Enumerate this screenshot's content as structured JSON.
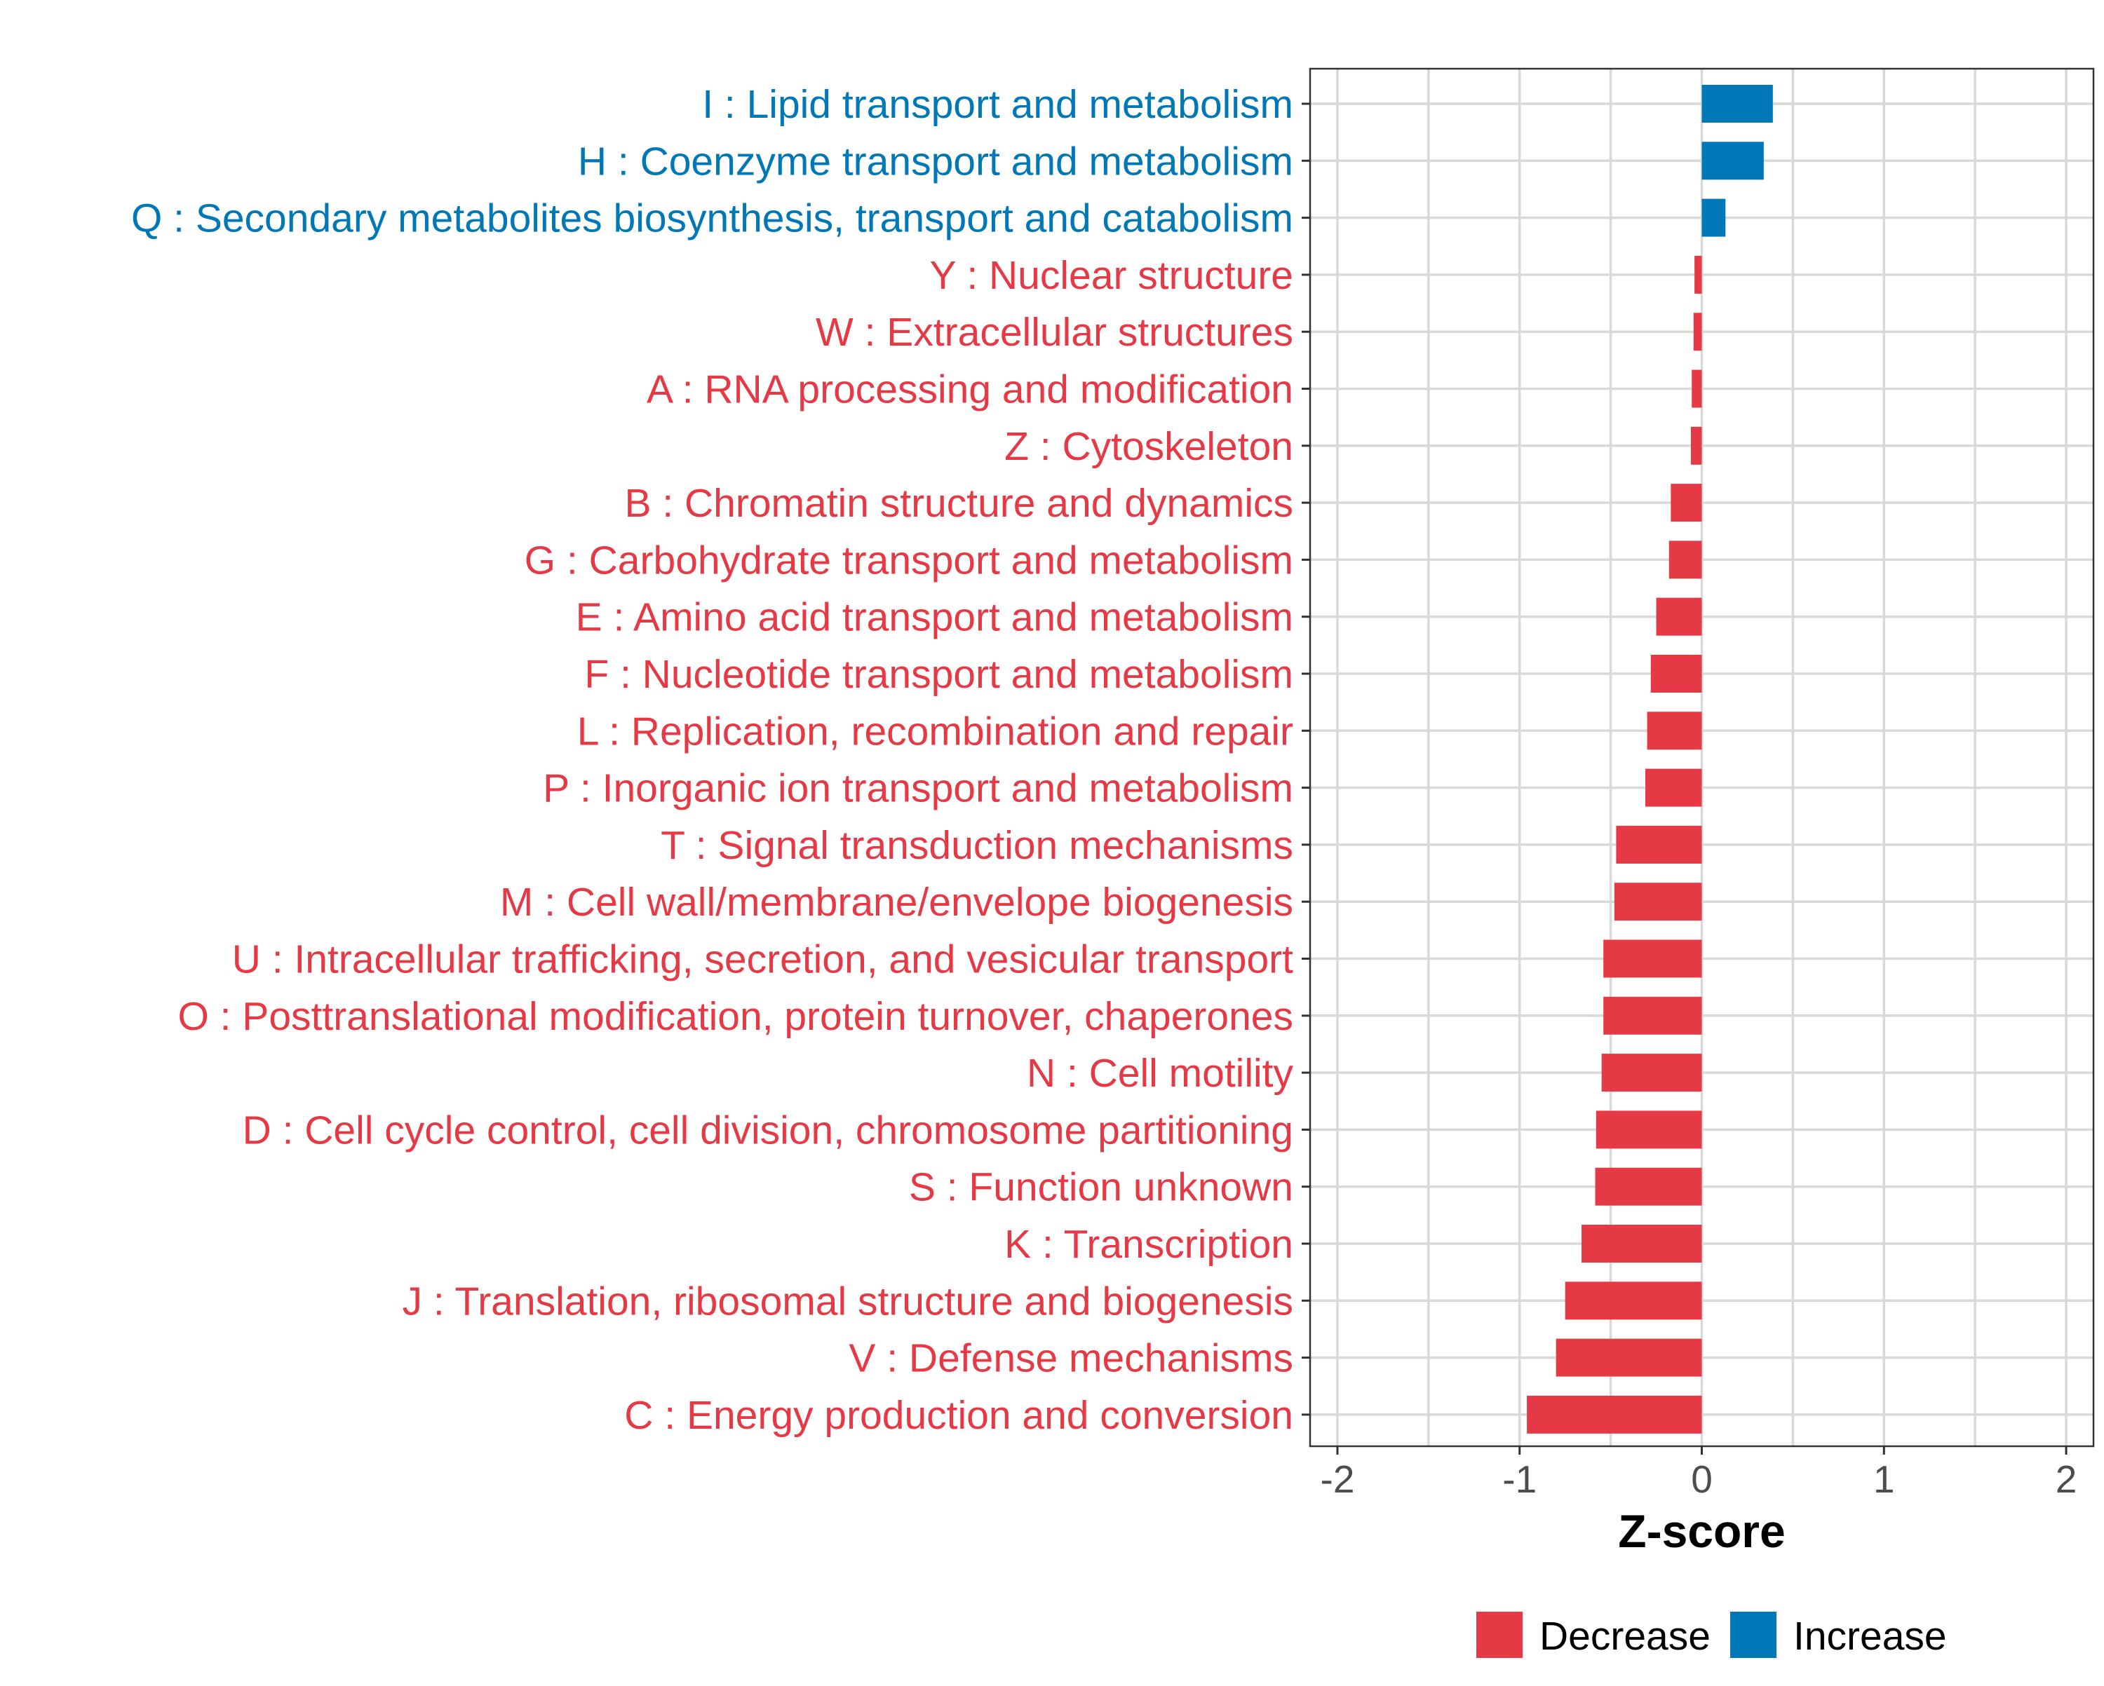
{
  "chart_data": {
    "type": "bar",
    "orientation": "horizontal",
    "title": "",
    "xlabel": "Z-score",
    "ylabel": "",
    "xlim": [
      -2.15,
      2.15
    ],
    "xticks": [
      -2,
      -1,
      0,
      1,
      2
    ],
    "xtick_labels": [
      "-2",
      "-1",
      "0",
      "1",
      "2"
    ],
    "grid": true,
    "legend_position": "bottom",
    "colors": {
      "Decrease": "#E63946",
      "Increase": "#0077B6"
    },
    "legend": [
      {
        "label": "Decrease",
        "group": "Decrease"
      },
      {
        "label": "Increase",
        "group": "Increase"
      }
    ],
    "categories": [
      "I : Lipid transport and metabolism",
      "H : Coenzyme transport and metabolism",
      "Q : Secondary metabolites biosynthesis, transport and catabolism",
      "Y : Nuclear structure",
      "W : Extracellular structures",
      "A : RNA processing and modification",
      "Z : Cytoskeleton",
      "B : Chromatin structure and dynamics",
      "G : Carbohydrate transport and metabolism",
      "E : Amino acid transport and metabolism",
      "F : Nucleotide transport and metabolism",
      "L : Replication, recombination and repair",
      "P : Inorganic ion transport and metabolism",
      "T : Signal transduction mechanisms",
      "M : Cell wall/membrane/envelope biogenesis",
      "U : Intracellular trafficking, secretion, and vesicular transport",
      "O : Posttranslational modification, protein turnover, chaperones",
      "N : Cell motility",
      "D : Cell cycle control, cell division, chromosome partitioning",
      "S : Function unknown",
      "K : Transcription",
      "J : Translation, ribosomal structure and biogenesis",
      "V : Defense mechanisms",
      "C : Energy production and conversion"
    ],
    "values": [
      0.39,
      0.34,
      0.13,
      -0.04,
      -0.045,
      -0.055,
      -0.06,
      -0.17,
      -0.18,
      -0.25,
      -0.28,
      -0.3,
      -0.31,
      -0.47,
      -0.48,
      -0.54,
      -0.54,
      -0.55,
      -0.58,
      -0.585,
      -0.66,
      -0.75,
      -0.8,
      -0.96
    ],
    "groups": [
      "Increase",
      "Increase",
      "Increase",
      "Decrease",
      "Decrease",
      "Decrease",
      "Decrease",
      "Decrease",
      "Decrease",
      "Decrease",
      "Decrease",
      "Decrease",
      "Decrease",
      "Decrease",
      "Decrease",
      "Decrease",
      "Decrease",
      "Decrease",
      "Decrease",
      "Decrease",
      "Decrease",
      "Decrease",
      "Decrease",
      "Decrease"
    ]
  }
}
